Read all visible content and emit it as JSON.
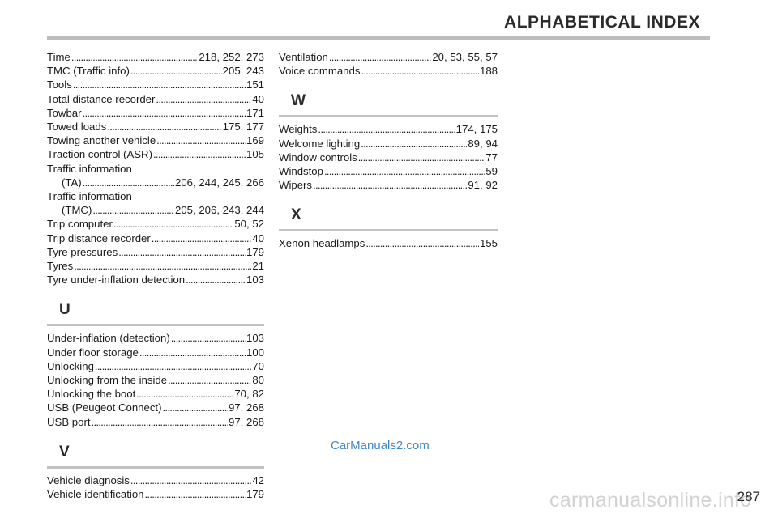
{
  "header": {
    "title": "ALPHABETICAL INDEX"
  },
  "left_column": {
    "t_entries": [
      {
        "term": "Time",
        "pages": "218, 252, 273"
      },
      {
        "term": "TMC (Traffic info)",
        "pages": "205, 243"
      },
      {
        "term": "Tools",
        "pages": "151"
      },
      {
        "term": "Total distance recorder",
        "pages": "40"
      },
      {
        "term": "Towbar",
        "pages": "171"
      },
      {
        "term": "Towed loads",
        "pages": "175, 177"
      },
      {
        "term": "Towing another vehicle",
        "pages": "169"
      },
      {
        "term": "Traction control (ASR)",
        "pages": "105"
      }
    ],
    "traffic_ta": {
      "first": "Traffic information",
      "term": "(TA)",
      "pages": "206, 244, 245, 266"
    },
    "traffic_tmc": {
      "first": "Traffic information",
      "term": "(TMC)",
      "pages": "205, 206, 243, 244"
    },
    "t_entries_2": [
      {
        "term": "Trip computer",
        "pages": "50, 52"
      },
      {
        "term": "Trip distance recorder",
        "pages": "40"
      },
      {
        "term": "Tyre pressures",
        "pages": "179"
      },
      {
        "term": "Tyres",
        "pages": "21"
      },
      {
        "term": "Tyre under-inflation detection",
        "pages": "103"
      }
    ],
    "u_letter": "U",
    "u_entries": [
      {
        "term": "Under-inflation (detection)",
        "pages": "103"
      },
      {
        "term": "Under floor storage",
        "pages": "100"
      },
      {
        "term": "Unlocking",
        "pages": "70"
      },
      {
        "term": "Unlocking from the inside",
        "pages": "80"
      },
      {
        "term": "Unlocking the boot",
        "pages": "70, 82"
      },
      {
        "term": "USB (Peugeot Connect)",
        "pages": "97, 268"
      },
      {
        "term": "USB port",
        "pages": "97, 268"
      }
    ],
    "v_letter": "V",
    "v_entries": [
      {
        "term": "Vehicle diagnosis",
        "pages": "42"
      },
      {
        "term": "Vehicle identification",
        "pages": "179"
      }
    ]
  },
  "right_column": {
    "v_entries": [
      {
        "term": "Ventilation",
        "pages": "20, 53, 55, 57"
      },
      {
        "term": "Voice commands",
        "pages": "188"
      }
    ],
    "w_letter": "W",
    "w_entries": [
      {
        "term": "Weights",
        "pages": "174, 175"
      },
      {
        "term": "Welcome lighting",
        "pages": "89, 94"
      },
      {
        "term": "Window controls",
        "pages": "77"
      },
      {
        "term": "Windstop",
        "pages": "59"
      },
      {
        "term": "Wipers",
        "pages": "91, 92"
      }
    ],
    "x_letter": "X",
    "x_entries": [
      {
        "term": "Xenon headlamps",
        "pages": "155"
      }
    ]
  },
  "footer": {
    "watermark": "CarManuals2.com",
    "watermark_bottom": "carmanualsonline.info",
    "page_number": "287"
  }
}
